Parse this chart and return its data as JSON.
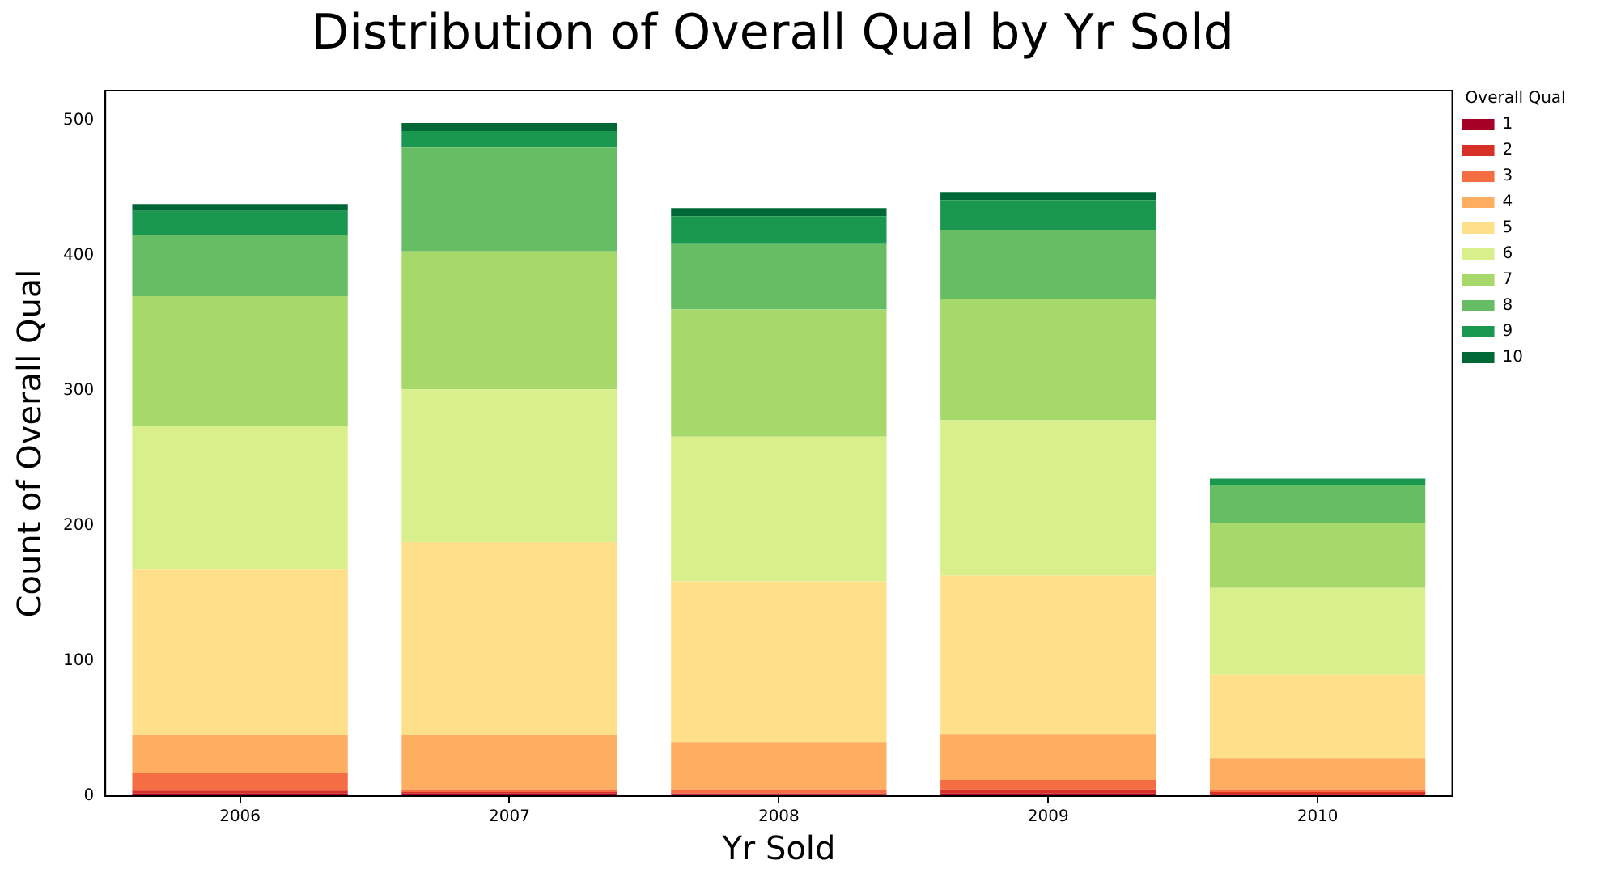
{
  "chart_data": {
    "type": "bar",
    "title": "Distribution of Overall Qual by Yr Sold",
    "xlabel": "Yr Sold",
    "ylabel": "Count of Overall Qual",
    "legend_title": "Overall Qual",
    "categories": [
      "2006",
      "2007",
      "2008",
      "2009",
      "2010"
    ],
    "stacked": true,
    "ylim": [
      0,
      522
    ],
    "yticks": [
      0,
      100,
      200,
      300,
      400,
      500
    ],
    "grid": false,
    "legend": "right",
    "series": [
      {
        "name": "1",
        "color": "#a50026",
        "values": [
          2,
          2,
          1,
          2,
          0
        ]
      },
      {
        "name": "2",
        "color": "#d73027",
        "values": [
          2,
          1,
          1,
          3,
          3
        ]
      },
      {
        "name": "3",
        "color": "#f46d43",
        "values": [
          13,
          2,
          3,
          7,
          2
        ]
      },
      {
        "name": "4",
        "color": "#fdae61",
        "values": [
          28,
          40,
          35,
          34,
          23
        ]
      },
      {
        "name": "5",
        "color": "#fee08b",
        "values": [
          123,
          143,
          119,
          117,
          62
        ]
      },
      {
        "name": "6",
        "color": "#d9ef8b",
        "values": [
          106,
          113,
          107,
          115,
          64
        ]
      },
      {
        "name": "7",
        "color": "#a6d96a",
        "values": [
          96,
          102,
          94,
          90,
          48
        ]
      },
      {
        "name": "8",
        "color": "#66bd63",
        "values": [
          45,
          77,
          49,
          51,
          28
        ]
      },
      {
        "name": "9",
        "color": "#1a9850",
        "values": [
          18,
          12,
          20,
          22,
          5
        ]
      },
      {
        "name": "10",
        "color": "#006837",
        "values": [
          5,
          6,
          6,
          6,
          0
        ]
      }
    ]
  }
}
